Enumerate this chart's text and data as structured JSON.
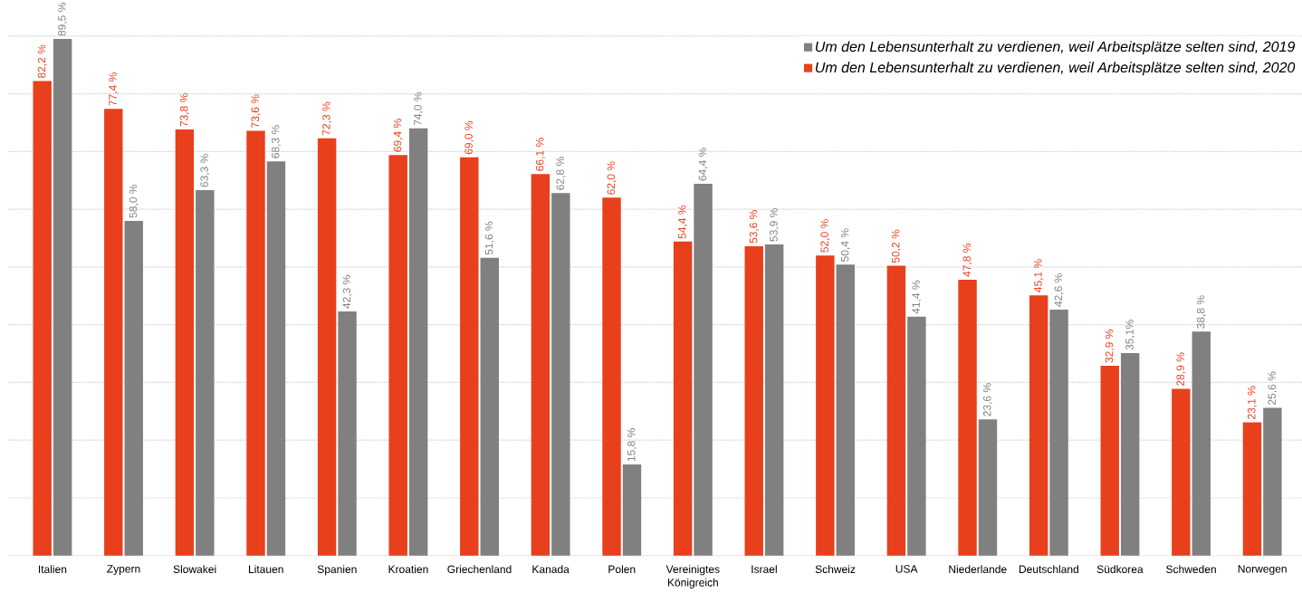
{
  "chart_data": {
    "type": "bar",
    "categories": [
      "Italien",
      "Zypern",
      "Slowakei",
      "Litauen",
      "Spanien",
      "Kroatien",
      "Griechenland",
      "Kanada",
      "Polen",
      "Vereinigtes Königreich",
      "Israel",
      "Schweiz",
      "USA",
      "Niederlande",
      "Deutschland",
      "Südkorea",
      "Schweden",
      "Norwegen"
    ],
    "series": [
      {
        "name": "Um den Lebensunterhalt zu verdienen, weil Arbeitsplätze selten sind, 2020",
        "color": "#e8401c",
        "values": [
          82.2,
          77.4,
          73.8,
          73.6,
          72.3,
          69.4,
          69.0,
          66.1,
          62.0,
          54.4,
          53.6,
          52.0,
          50.2,
          47.8,
          45.1,
          32.9,
          28.9,
          23.1
        ],
        "value_labels": [
          "82,2 %",
          "77,4 %",
          "73,8 %",
          "73,6 %",
          "72,3 %",
          "69,4 %",
          "69,0 %",
          "66,1 %",
          "62,0 %",
          "54,4 %",
          "53,6 %",
          "52,0 %",
          "50,2 %",
          "47,8 %",
          "45,1 %",
          "32,9 %",
          "28,9 %",
          "23,1 %"
        ]
      },
      {
        "name": "Um den Lebensunterhalt zu verdienen, weil Arbeitsplätze selten sind, 2019",
        "color": "#808080",
        "values": [
          89.5,
          58.0,
          63.3,
          68.3,
          42.3,
          74.0,
          51.6,
          62.8,
          15.8,
          64.4,
          53.9,
          50.4,
          41.4,
          23.6,
          42.6,
          35.1,
          38.8,
          25.6
        ],
        "value_labels": [
          "89,5 %",
          "58,0 %",
          "63,3 %",
          "68,3 %",
          "42,3 %",
          "74,0 %",
          "51,6 %",
          "62,8 %",
          "15,8 %",
          "64,4 %",
          "53,9 %",
          "50,4 %",
          "41,4 %",
          "23,6 %",
          "42,6 %",
          "35,1%",
          "38,8 %",
          "25,6 %"
        ]
      }
    ],
    "ylim": [
      0,
      90
    ],
    "yticks": [
      {
        "value": 0,
        "label": null
      },
      {
        "value": 10,
        "label": null
      },
      {
        "value": 20,
        "label": null
      },
      {
        "value": 30,
        "label": null
      },
      {
        "value": 40,
        "label": null
      },
      {
        "value": 50,
        "label": null
      },
      {
        "value": 60,
        "label": null
      },
      {
        "value": 70,
        "label": null
      },
      {
        "value": 80,
        "label": null
      },
      {
        "value": 90,
        "label": null
      }
    ],
    "tick_labels": "x",
    "grid": "y",
    "legend": "top right"
  }
}
